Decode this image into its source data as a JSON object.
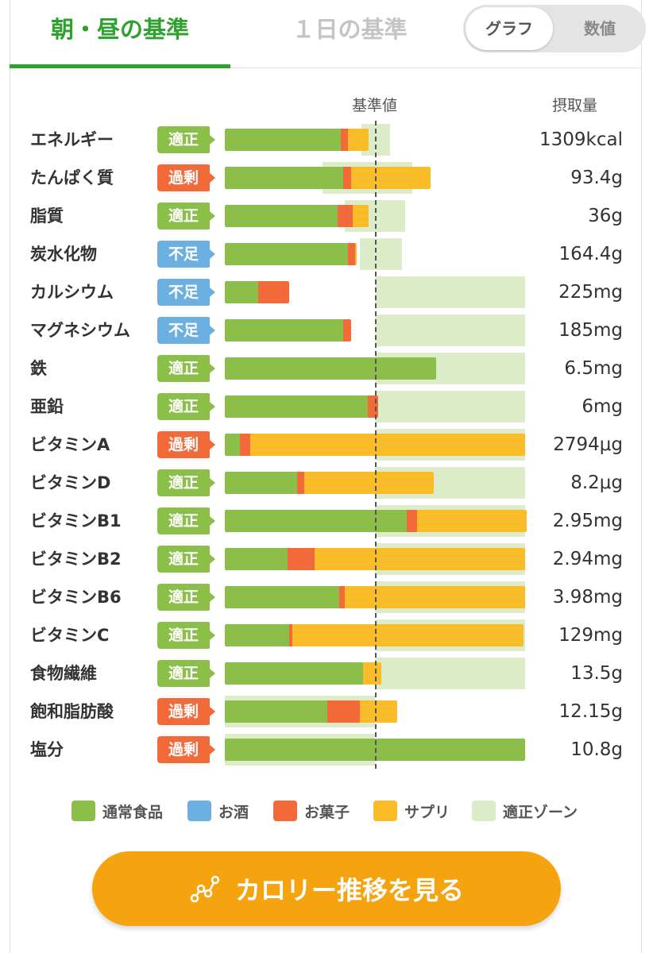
{
  "tabs": {
    "active": "朝・昼の基準",
    "inactive": "１日の基準"
  },
  "view_toggle": {
    "graph": "グラフ",
    "values": "数値",
    "selected": "グラフ"
  },
  "table": {
    "baseline_header": "基準値",
    "intake_header": "摂取量"
  },
  "colors": {
    "food": "#8bbf4a",
    "alcohol": "#6bb0e0",
    "sweets": "#f26a3a",
    "supplement": "#fbbc2a",
    "zone": "#dcecc9",
    "status_ok": "#8bbf4a",
    "status_over": "#f26a3a",
    "status_under": "#6bb0e0",
    "accent": "#2ea12e",
    "cta": "#f5a40f"
  },
  "nutrients": [
    {
      "name": "エネルギー",
      "status": "適正",
      "status_kind": "ok",
      "amount": "1309kcal",
      "food": 0.77,
      "alcohol": 0,
      "sweets": 0.05,
      "supplement": 0.14,
      "zone": [
        0.91,
        1.1
      ]
    },
    {
      "name": "たんぱく質",
      "status": "過剰",
      "status_kind": "over",
      "amount": "93.4g",
      "food": 0.79,
      "alcohol": 0,
      "sweets": 0.05,
      "supplement": 0.53,
      "zone": [
        0.65,
        1.25
      ]
    },
    {
      "name": "脂質",
      "status": "適正",
      "status_kind": "ok",
      "amount": "36g",
      "food": 0.75,
      "alcohol": 0,
      "sweets": 0.1,
      "supplement": 0.11,
      "zone": [
        0.8,
        1.2
      ]
    },
    {
      "name": "炭水化物",
      "status": "不足",
      "status_kind": "under",
      "amount": "164.4g",
      "food": 0.82,
      "alcohol": 0,
      "sweets": 0.05,
      "supplement": 0.01,
      "zone": [
        0.9,
        1.18
      ]
    },
    {
      "name": "カルシウム",
      "status": "不足",
      "status_kind": "under",
      "amount": "225mg",
      "food": 0.22,
      "alcohol": 0,
      "sweets": 0.21,
      "supplement": 0,
      "zone": [
        1.0,
        2.0
      ]
    },
    {
      "name": "マグネシウム",
      "status": "不足",
      "status_kind": "under",
      "amount": "185mg",
      "food": 0.79,
      "alcohol": 0,
      "sweets": 0.05,
      "supplement": 0,
      "zone": [
        1.0,
        2.0
      ]
    },
    {
      "name": "鉄",
      "status": "適正",
      "status_kind": "ok",
      "amount": "6.5mg",
      "food": 1.41,
      "alcohol": 0,
      "sweets": 0,
      "supplement": 0,
      "zone": [
        1.0,
        2.0
      ]
    },
    {
      "name": "亜鉛",
      "status": "適正",
      "status_kind": "ok",
      "amount": "6mg",
      "food": 0.95,
      "alcohol": 0,
      "sweets": 0.07,
      "supplement": 0,
      "zone": [
        1.0,
        2.0
      ]
    },
    {
      "name": "ビタミンA",
      "status": "過剰",
      "status_kind": "over",
      "amount": "2794μg",
      "food": 0.1,
      "alcohol": 0,
      "sweets": 0.07,
      "supplement": 1.83,
      "zone": [
        1.0,
        2.0
      ]
    },
    {
      "name": "ビタミンD",
      "status": "適正",
      "status_kind": "ok",
      "amount": "8.2μg",
      "food": 0.48,
      "alcohol": 0,
      "sweets": 0.05,
      "supplement": 0.86,
      "zone": [
        1.0,
        2.0
      ]
    },
    {
      "name": "ビタミンB1",
      "status": "適正",
      "status_kind": "ok",
      "amount": "2.95mg",
      "food": 1.21,
      "alcohol": 0,
      "sweets": 0.07,
      "supplement": 0.73,
      "zone": [
        1.0,
        2.0
      ]
    },
    {
      "name": "ビタミンB2",
      "status": "適正",
      "status_kind": "ok",
      "amount": "2.94mg",
      "food": 0.42,
      "alcohol": 0,
      "sweets": 0.18,
      "supplement": 1.4,
      "zone": [
        1.0,
        2.0
      ]
    },
    {
      "name": "ビタミンB6",
      "status": "適正",
      "status_kind": "ok",
      "amount": "3.98mg",
      "food": 0.76,
      "alcohol": 0,
      "sweets": 0.04,
      "supplement": 1.2,
      "zone": [
        1.0,
        2.0
      ]
    },
    {
      "name": "ビタミンC",
      "status": "適正",
      "status_kind": "ok",
      "amount": "129mg",
      "food": 0.43,
      "alcohol": 0,
      "sweets": 0.02,
      "supplement": 1.54,
      "zone": [
        1.0,
        2.0
      ]
    },
    {
      "name": "食物繊維",
      "status": "適正",
      "status_kind": "ok",
      "amount": "13.5g",
      "food": 0.92,
      "alcohol": 0,
      "sweets": 0,
      "supplement": 0.12,
      "zone": [
        1.0,
        2.0
      ]
    },
    {
      "name": "飽和脂肪酸",
      "status": "過剰",
      "status_kind": "over",
      "amount": "12.15g",
      "food": 0.68,
      "alcohol": 0,
      "sweets": 0.22,
      "supplement": 0.25,
      "zone": [
        0,
        1.0
      ]
    },
    {
      "name": "塩分",
      "status": "過剰",
      "status_kind": "over",
      "amount": "10.8g",
      "food": 2.0,
      "alcohol": 0,
      "sweets": 0,
      "supplement": 0,
      "zone": [
        0,
        1.0
      ]
    }
  ],
  "legend": {
    "food": "通常食品",
    "alcohol": "お酒",
    "sweets": "お菓子",
    "supplement": "サプリ",
    "zone": "適正ゾーン"
  },
  "cta": {
    "label": "カロリー推移を見る",
    "icon": "line-chart-icon"
  }
}
